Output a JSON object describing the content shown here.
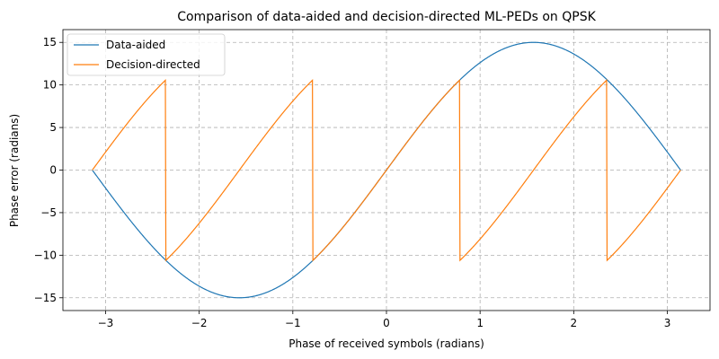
{
  "chart_data": {
    "type": "line",
    "title": "Comparison of data-aided and decision-directed ML-PEDs on QPSK",
    "xlabel": "Phase of received symbols (radians)",
    "ylabel": "Phase error (radians)",
    "xlim": [
      -3.4558,
      3.4558
    ],
    "ylim": [
      -16.5,
      16.5
    ],
    "xticks": [
      -3,
      -2,
      -1,
      0,
      1,
      2,
      3
    ],
    "yticks": [
      -15,
      -10,
      -5,
      0,
      5,
      10,
      15
    ],
    "grid": true,
    "legend_position": "top-left",
    "series": [
      {
        "name": "Data-aided",
        "color": "#1f77b4",
        "function": "15*sin(x)",
        "x_range": [
          -3.14159,
          3.14159
        ]
      },
      {
        "name": "Decision-directed",
        "color": "#ff7f0e",
        "function": "15*sin(x - (nearest QPSK symbol phase))",
        "x_range": [
          -3.14159,
          3.14159
        ],
        "discontinuities": [
          -2.35619,
          -0.785398,
          0.785398,
          2.35619
        ],
        "peak_value": 10.6066
      }
    ]
  }
}
